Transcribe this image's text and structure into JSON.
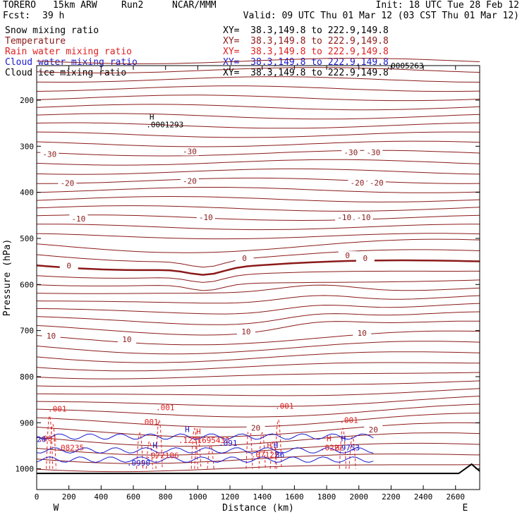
{
  "header": {
    "model": "TORERO",
    "resolution": "15km ARW",
    "run": "Run2",
    "org": "NCAR/MMM",
    "init": "Init: 18 UTC Tue 28 Feb 12",
    "fcst_label": "Fcst:",
    "fcst_value": "39 h",
    "valid": "Valid: 09 UTC Thu 01 Mar 12 (03 CST Thu 01 Mar 12)"
  },
  "colors": {
    "temperature": "#8b1a1a",
    "rain": "#e02020",
    "cloud_water": "#1a1acd",
    "snow": "#000000",
    "ice": "#000000",
    "ground": "#000000"
  },
  "legend": [
    {
      "field": "Snow mixing ratio",
      "xy": "XY=  38.3,149.8 to 222.9,149.8",
      "color": "#000000"
    },
    {
      "field": "Temperature",
      "xy": "XY=  38.3,149.8 to 222.9,149.8",
      "color": "#8b1a1a"
    },
    {
      "field": "Rain water mixing ratio",
      "xy": "XY=  38.3,149.8 to 222.9,149.8",
      "color": "#e02020"
    },
    {
      "field": "Cloud water mixing ratio",
      "xy": "XY=  38.3,149.8 to 222.9,149.8",
      "color": "#1a1acd"
    },
    {
      "field": "Cloud ice mixing ratio",
      "xy": "XY=  38.3,149.8 to 222.9,149.8",
      "color": "#000000"
    }
  ],
  "chart_data": {
    "type": "cross-section contour",
    "xlabel": "Distance (km)",
    "ylabel": "Pressure (hPa)",
    "xlim": [
      0,
      2750
    ],
    "ylim": [
      1045,
      125
    ],
    "x_ticks": [
      0,
      200,
      400,
      600,
      800,
      1000,
      1200,
      1400,
      1600,
      1800,
      2000,
      2200,
      2400,
      2600
    ],
    "y_ticks": [
      200,
      300,
      400,
      500,
      600,
      700,
      800,
      900,
      1000
    ],
    "x_end_labels": {
      "left": "W",
      "right": "E"
    },
    "temperature_contours": [
      {
        "level": -30,
        "labels": [
          {
            "x": 80,
            "p": 320,
            "text": "-30"
          },
          {
            "x": 950,
            "p": 314,
            "text": "-30"
          },
          {
            "x": 1950,
            "p": 316,
            "text": "-30"
          },
          {
            "x": 2090,
            "p": 316,
            "text": "-30"
          }
        ]
      },
      {
        "level": -20,
        "labels": [
          {
            "x": 190,
            "p": 383,
            "text": "-20"
          },
          {
            "x": 950,
            "p": 378,
            "text": "-20"
          },
          {
            "x": 1990,
            "p": 382,
            "text": "-20"
          },
          {
            "x": 2110,
            "p": 382,
            "text": "-20"
          }
        ]
      },
      {
        "level": -10,
        "labels": [
          {
            "x": 260,
            "p": 460,
            "text": "-10"
          },
          {
            "x": 1050,
            "p": 457,
            "text": "-10"
          },
          {
            "x": 1910,
            "p": 457,
            "text": "-10"
          },
          {
            "x": 2030,
            "p": 457,
            "text": "-10"
          }
        ]
      },
      {
        "level": 0,
        "labels": [
          {
            "x": 200,
            "p": 562,
            "text": "0"
          },
          {
            "x": 1290,
            "p": 546,
            "text": "0"
          },
          {
            "x": 1930,
            "p": 540,
            "text": "0"
          },
          {
            "x": 2040,
            "p": 546,
            "text": "0"
          }
        ]
      },
      {
        "level": 10,
        "labels": [
          {
            "x": 90,
            "p": 714,
            "text": "10"
          },
          {
            "x": 560,
            "p": 722,
            "text": "10"
          },
          {
            "x": 1300,
            "p": 705,
            "text": "10"
          },
          {
            "x": 2020,
            "p": 708,
            "text": "10"
          }
        ]
      },
      {
        "level": 20,
        "labels": [
          {
            "x": 1360,
            "p": 914,
            "text": "20"
          },
          {
            "x": 2090,
            "p": 918,
            "text": "20"
          }
        ]
      }
    ],
    "annotations": [
      {
        "x": 700,
        "p": 242,
        "text": "H",
        "color": "black"
      },
      {
        "x": 680,
        "p": 259,
        "text": ".0001293",
        "color": "black"
      },
      {
        "x": 2170,
        "p": 131,
        "text": ".0005263",
        "color": "black"
      },
      {
        "x": 10,
        "p": 940,
        "text": ".001",
        "color": "red"
      },
      {
        "x": 70,
        "p": 876,
        "text": ".001",
        "color": "red"
      },
      {
        "x": 640,
        "p": 904,
        "text": ".001",
        "color": "red"
      },
      {
        "x": 740,
        "p": 873,
        "text": ".001",
        "color": "red"
      },
      {
        "x": 1480,
        "p": 870,
        "text": ".001",
        "color": "red"
      },
      {
        "x": 1880,
        "p": 900,
        "text": ".001",
        "color": "red"
      },
      {
        "x": 120,
        "p": 960,
        "text": ".08235",
        "color": "red"
      },
      {
        "x": 680,
        "p": 977,
        "text": ".072186",
        "color": "red"
      },
      {
        "x": 880,
        "p": 944,
        "text": ".1231695432",
        "color": "red"
      },
      {
        "x": 1330,
        "p": 975,
        "text": ".07122",
        "color": "red"
      },
      {
        "x": 1480,
        "p": 975,
        "text": "86",
        "color": "blue"
      },
      {
        "x": 1760,
        "p": 960,
        "text": ".0222",
        "color": "red"
      },
      {
        "x": 1890,
        "p": 960,
        "text": "9753",
        "color": "blue"
      },
      {
        "x": 560,
        "p": 993,
        "text": ".0990",
        "color": "blue"
      },
      {
        "x": 1130,
        "p": 950,
        "text": ".091",
        "color": "blue"
      },
      {
        "x": 0,
        "p": 942,
        "text": "20",
        "color": "blue"
      }
    ],
    "h_markers": [
      {
        "x": 720,
        "p": 955,
        "color": "blue"
      },
      {
        "x": 920,
        "p": 920,
        "color": "blue"
      },
      {
        "x": 990,
        "p": 925,
        "color": "red"
      },
      {
        "x": 1430,
        "p": 955,
        "color": "red"
      },
      {
        "x": 1470,
        "p": 955,
        "color": "blue"
      },
      {
        "x": 1800,
        "p": 940,
        "color": "red"
      },
      {
        "x": 1890,
        "p": 940,
        "color": "blue"
      },
      {
        "x": 1850,
        "p": 960,
        "color": "red"
      }
    ]
  }
}
